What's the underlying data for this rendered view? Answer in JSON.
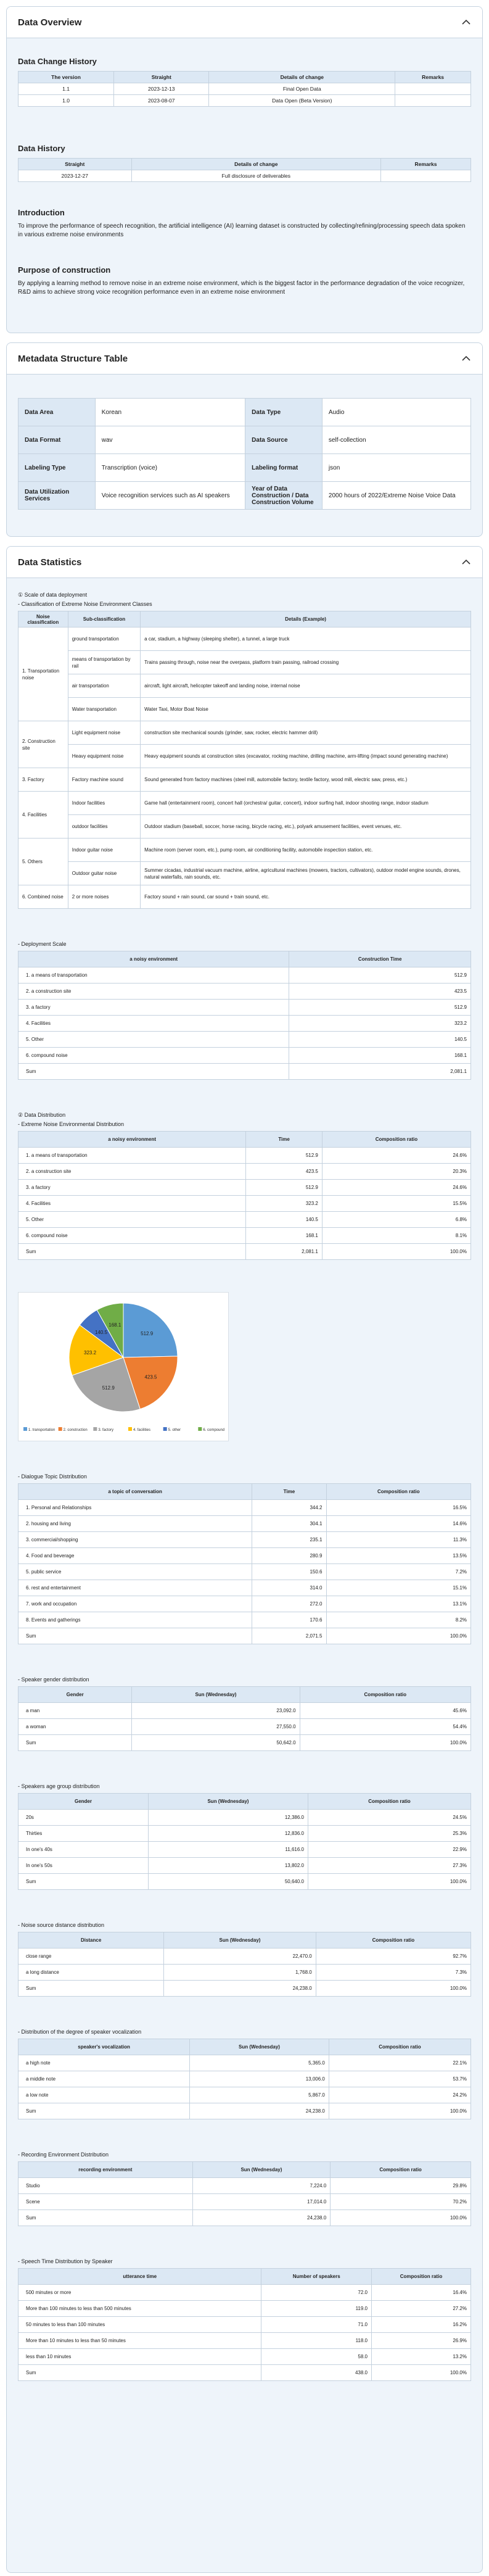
{
  "overview": {
    "title": "Data Overview",
    "change_history": {
      "title": "Data Change History",
      "headers": [
        "The version",
        "Straight",
        "Details of change",
        "Remarks"
      ],
      "rows": [
        [
          "1.1",
          "2023-12-13",
          "Final Open Data"
        ],
        [
          "1.0",
          "2023-08-07",
          "Data Open (Beta Version)"
        ]
      ]
    },
    "data_history": {
      "title": "Data History",
      "headers": [
        "Straight",
        "Details of change",
        "Remarks"
      ],
      "rows": [
        [
          "2023-12-27",
          "Full disclosure of deliverables"
        ]
      ]
    },
    "introduction": {
      "title": "Introduction",
      "text": "To improve the performance of speech recognition, the artificial intelligence (AI) learning dataset is constructed by collecting/refining/processing speech data spoken in various extreme noise environments"
    },
    "purpose": {
      "title": "Purpose of construction",
      "text": "By applying a learning method to remove noise in an extreme noise environment, which is the biggest factor in the performance degradation of the voice recognizer, R&D aims to achieve strong voice recognition performance even in an extreme noise environment"
    }
  },
  "metadata": {
    "title": "Metadata Structure Table",
    "items": [
      {
        "label": "Data Area",
        "value": "Korean"
      },
      {
        "label": "Data Type",
        "value": "Audio"
      },
      {
        "label": "Data Format",
        "value": "wav"
      },
      {
        "label": "Data Source",
        "value": "self-collection"
      },
      {
        "label": "Labeling Type",
        "value": "Transcription (voice)"
      },
      {
        "label": "Labeling format",
        "value": "json"
      },
      {
        "label": "Data Utilization Services",
        "value": "Voice recognition services such as AI speakers"
      },
      {
        "label": "Year of Data Construction / Data Construction Volume",
        "value": "2000 hours of 2022/Extreme Noise Voice Data"
      }
    ]
  },
  "statistics": {
    "title": "Data Statistics",
    "blocks": [
      {
        "type": "classification",
        "heading": "① Scale of data deployment",
        "subtitle": "- Classification of Extreme Noise Environment Classes",
        "headers": [
          "Noise classification",
          "Sub-classification",
          "Details (Example)"
        ],
        "groups": [
          {
            "name": "1. Transportation noise",
            "items": [
              [
                "ground transportation",
                "a car, stadium, a highway (sleeping shelter), a tunnel, a large truck"
              ],
              [
                "means of transportation by rail",
                "Trains passing through, noise near the overpass, platform train passing, railroad crossing"
              ],
              [
                "air transportation",
                "aircraft, light aircraft, helicopter takeoff and landing noise, internal noise"
              ],
              [
                "Water transportation",
                "Water Taxi, Motor Boat Noise"
              ]
            ]
          },
          {
            "name": "2. Construction site",
            "items": [
              [
                "Light equipment noise",
                "construction site mechanical sounds (grinder, saw, rocker, electric hammer drill)"
              ],
              [
                "Heavy equipment noise",
                "Heavy equipment sounds at construction sites (excavator, rocking machine, drilling machine, arm-lifting (impact sound generating machine)"
              ]
            ]
          },
          {
            "name": "3. Factory",
            "items": [
              [
                "Factory machine sound",
                "Sound generated from factory machines (steel mill, automobile factory, textile factory, wood mill, electric saw, press, etc.)"
              ]
            ]
          },
          {
            "name": "4. Facilities",
            "items": [
              [
                "Indoor facilities",
                "Game hall (entertainment room), concert hall (orchestra/ guitar, concert), indoor surfing hall, indoor shooting range, indoor stadium"
              ],
              [
                "outdoor facilities",
                "Outdoor stadium (baseball, soccer, horse racing, bicycle racing, etc.), polyark amusement facilities, event venues, etc."
              ]
            ]
          },
          {
            "name": "5. Others",
            "items": [
              [
                "Indoor guitar noise",
                "Machine room (server room, etc.), pump room, air conditioning facility, automobile inspection station, etc."
              ],
              [
                "Outdoor guitar noise",
                "Summer cicadas, industrial vacuum machine, airline, agricultural machines (mowers, tractors, cultivators), outdoor model engine sounds, drones, natural waterfalls, rain sounds, etc."
              ]
            ]
          },
          {
            "name": "6. Combined noise",
            "items": [
              [
                "2 or more noises",
                "Factory sound + rain sound, car sound + train sound, etc."
              ]
            ]
          }
        ]
      },
      {
        "type": "table",
        "subtitle": "- Deployment Scale",
        "headers": [
          "a noisy environment",
          "Construction Time"
        ],
        "rows": [
          [
            "1. a means of transportation",
            "512.9"
          ],
          [
            "2. a construction site",
            "423.5"
          ],
          [
            "3. a factory",
            "512.9"
          ],
          [
            "4. Facilities",
            "323.2"
          ],
          [
            "5. Other",
            "140.5"
          ],
          [
            "6. compound noise",
            "168.1"
          ],
          [
            "Sum",
            "2,081.1"
          ]
        ]
      },
      {
        "type": "table",
        "heading": "② Data Distribution",
        "subtitle": "- Extreme Noise Environmental Distribution",
        "headers": [
          "a noisy environment",
          "Time",
          "Composition ratio"
        ],
        "rows": [
          [
            "1. a means of transportation",
            "512.9",
            "24.6%"
          ],
          [
            "2. a construction site",
            "423.5",
            "20.3%"
          ],
          [
            "3. a factory",
            "512.9",
            "24.6%"
          ],
          [
            "4. Facilities",
            "323.2",
            "15.5%"
          ],
          [
            "5. Other",
            "140.5",
            "6.8%"
          ],
          [
            "6. compound noise",
            "168.1",
            "8.1%"
          ],
          [
            "Sum",
            "2,081.1",
            "100.0%"
          ]
        ]
      },
      {
        "type": "pie",
        "categories": [
          "1. transportation",
          "2. construction",
          "3. factory",
          "4. facilities",
          "5. other",
          "6. compound"
        ],
        "values": [
          512.9,
          423.5,
          512.9,
          323.2,
          140.5,
          168.1
        ],
        "colors": [
          "#5b9bd5",
          "#ed7d31",
          "#a5a5a5",
          "#ffc000",
          "#4472c4",
          "#70ad47"
        ]
      },
      {
        "type": "table",
        "subtitle": "- Dialogue Topic Distribution",
        "headers": [
          "a topic of conversation",
          "Time",
          "Composition ratio"
        ],
        "rows": [
          [
            "1. Personal and Relationships",
            "344.2",
            "16.5%"
          ],
          [
            "2. housing and living",
            "304.1",
            "14.6%"
          ],
          [
            "3. commercial/shopping",
            "235.1",
            "11.3%"
          ],
          [
            "4. Food and beverage",
            "280.9",
            "13.5%"
          ],
          [
            "5. public service",
            "150.6",
            "7.2%"
          ],
          [
            "6. rest and entertainment",
            "314.0",
            "15.1%"
          ],
          [
            "7. work and occupation",
            "272.0",
            "13.1%"
          ],
          [
            "8. Events and gatherings",
            "170.6",
            "8.2%"
          ],
          [
            "Sum",
            "2,071.5",
            "100.0%"
          ]
        ]
      },
      {
        "type": "table",
        "subtitle": "- Speaker gender distribution",
        "headers": [
          "Gender",
          "Sun (Wednesday)",
          "Composition ratio"
        ],
        "rows": [
          [
            "a man",
            "23,092.0",
            "45.6%"
          ],
          [
            "a woman",
            "27,550.0",
            "54.4%"
          ],
          [
            "Sum",
            "50,642.0",
            "100.0%"
          ]
        ]
      },
      {
        "type": "table",
        "subtitle": "- Speakers age group distribution",
        "headers": [
          "Gender",
          "Sun (Wednesday)",
          "Composition ratio"
        ],
        "rows": [
          [
            "20s",
            "12,386.0",
            "24.5%"
          ],
          [
            "Thirties",
            "12,836.0",
            "25.3%"
          ],
          [
            "In one's 40s",
            "11,616.0",
            "22.9%"
          ],
          [
            "In one's 50s",
            "13,802.0",
            "27.3%"
          ],
          [
            "Sum",
            "50,640.0",
            "100.0%"
          ]
        ]
      },
      {
        "type": "table",
        "subtitle": "- Noise source distance distribution",
        "headers": [
          "Distance",
          "Sun (Wednesday)",
          "Composition ratio"
        ],
        "rows": [
          [
            "close range",
            "22,470.0",
            "92.7%"
          ],
          [
            "a long distance",
            "1,768.0",
            "7.3%"
          ],
          [
            "Sum",
            "24,238.0",
            "100.0%"
          ]
        ]
      },
      {
        "type": "table",
        "subtitle": "- Distribution of the degree of speaker vocalization",
        "headers": [
          "speaker's vocalization",
          "Sun (Wednesday)",
          "Composition ratio"
        ],
        "rows": [
          [
            "a high note",
            "5,365.0",
            "22.1%"
          ],
          [
            "a middle note",
            "13,006.0",
            "53.7%"
          ],
          [
            "a low note",
            "5,867.0",
            "24.2%"
          ],
          [
            "Sum",
            "24,238.0",
            "100.0%"
          ]
        ]
      },
      {
        "type": "table",
        "subtitle": "- Recording Environment Distribution",
        "headers": [
          "recording environment",
          "Sun (Wednesday)",
          "Composition ratio"
        ],
        "rows": [
          [
            "Studio",
            "7,224.0",
            "29.8%"
          ],
          [
            "Scene",
            "17,014.0",
            "70.2%"
          ],
          [
            "Sum",
            "24,238.0",
            "100.0%"
          ]
        ]
      },
      {
        "type": "table",
        "subtitle": "- Speech Time Distribution by Speaker",
        "headers": [
          "utterance time",
          "Number of speakers",
          "Composition ratio"
        ],
        "rows": [
          [
            "500 minutes or more",
            "72.0",
            "16.4%"
          ],
          [
            "More than 100 minutes to less than 500 minutes",
            "119.0",
            "27.2%"
          ],
          [
            "50 minutes to less than 100 minutes",
            "71.0",
            "16.2%"
          ],
          [
            "More than 10 minutes to less than 50 minutes",
            "118.0",
            "26.9%"
          ],
          [
            "less than 10 minutes",
            "58.0",
            "13.2%"
          ],
          [
            "Sum",
            "438.0",
            "100.0%"
          ]
        ]
      }
    ]
  }
}
